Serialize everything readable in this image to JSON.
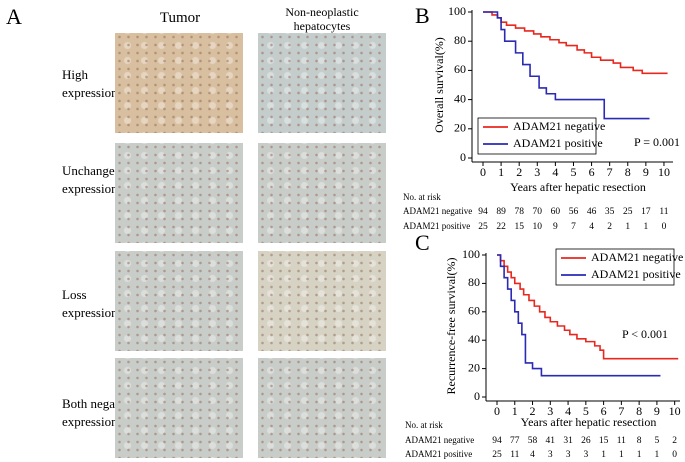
{
  "panel_a": {
    "label": "A",
    "columns": [
      "Tumor",
      "Non-neoplastic hepatocytes"
    ],
    "rows": [
      "High expression",
      "Unchanged expression",
      "Loss expression",
      "Both negative expression"
    ]
  },
  "chart_data": [
    {
      "type": "line",
      "label": "B",
      "ylabel": "Overall survival(%)",
      "xlabel": "Years after hepatic resection",
      "annotation": "P = 0.001",
      "legend": "lower left",
      "xlim": [
        0,
        10.5
      ],
      "ylim": [
        0,
        100
      ],
      "xticks": [
        0,
        1,
        2,
        3,
        4,
        5,
        6,
        7,
        8,
        9,
        10
      ],
      "yticks": [
        0,
        20,
        40,
        60,
        80,
        100
      ],
      "series": [
        {
          "name": "ADAM21 negative",
          "color": "#e8281e",
          "x": [
            0,
            0.5,
            0.8,
            1,
            1.3,
            1.8,
            2.3,
            2.8,
            3.2,
            3.7,
            4.2,
            4.6,
            5.2,
            5.6,
            6,
            6.5,
            7.2,
            7.6,
            8.3,
            8.8,
            10.2
          ],
          "values": [
            100,
            98,
            96,
            93,
            91,
            89,
            87,
            85,
            83,
            81,
            79,
            77,
            74,
            72,
            69,
            67,
            65,
            62,
            60,
            58,
            58
          ]
        },
        {
          "name": "ADAM21 positive",
          "color": "#2a2ab4",
          "x": [
            0,
            0.8,
            1,
            1.2,
            1.8,
            2.2,
            2.6,
            3.1,
            3.5,
            4,
            6.7,
            9.2
          ],
          "values": [
            100,
            96,
            88,
            80,
            72,
            64,
            56,
            48,
            44,
            40,
            27,
            27
          ]
        }
      ],
      "risk_table": {
        "title": "No. at risk",
        "rows": [
          {
            "label": "ADAM21 negative",
            "counts": [
              94,
              89,
              78,
              70,
              60,
              56,
              46,
              35,
              25,
              17,
              11
            ]
          },
          {
            "label": "ADAM21 positive",
            "counts": [
              25,
              22,
              15,
              10,
              9,
              7,
              4,
              2,
              1,
              1,
              0
            ]
          }
        ]
      }
    },
    {
      "type": "line",
      "label": "C",
      "ylabel": "Recurrence-free survival(%)",
      "xlabel": "Years after hepatic resection",
      "annotation": "P < 0.001",
      "legend": "upper right",
      "xlim": [
        0,
        10.3
      ],
      "ylim": [
        0,
        100
      ],
      "xticks": [
        0,
        1,
        2,
        3,
        4,
        5,
        6,
        7,
        8,
        9,
        10
      ],
      "yticks": [
        0,
        20,
        40,
        60,
        80,
        100
      ],
      "series": [
        {
          "name": "ADAM21 negative",
          "color": "#e8281e",
          "x": [
            0,
            0.2,
            0.4,
            0.6,
            0.8,
            1,
            1.3,
            1.5,
            1.8,
            2.1,
            2.4,
            2.7,
            3,
            3.4,
            3.8,
            4.1,
            4.5,
            5,
            5.5,
            5.8,
            6,
            10.2
          ],
          "values": [
            100,
            96,
            92,
            88,
            84,
            80,
            76,
            72,
            68,
            64,
            60,
            56,
            53,
            50,
            47,
            44,
            41,
            39,
            36,
            33,
            27,
            27
          ]
        },
        {
          "name": "ADAM21 positive",
          "color": "#2a2ab4",
          "x": [
            0,
            0.2,
            0.4,
            0.6,
            0.8,
            1,
            1.2,
            1.4,
            1.6,
            2,
            2.5,
            9.2
          ],
          "values": [
            100,
            92,
            84,
            76,
            68,
            60,
            52,
            44,
            24,
            20,
            15,
            15
          ]
        }
      ],
      "risk_table": {
        "title": "No. at risk",
        "rows": [
          {
            "label": "ADAM21 negative",
            "counts": [
              94,
              77,
              58,
              41,
              31,
              26,
              15,
              11,
              8,
              5,
              2
            ]
          },
          {
            "label": "ADAM21 positive",
            "counts": [
              25,
              11,
              4,
              3,
              3,
              3,
              1,
              1,
              1,
              1,
              0
            ]
          }
        ]
      }
    }
  ]
}
